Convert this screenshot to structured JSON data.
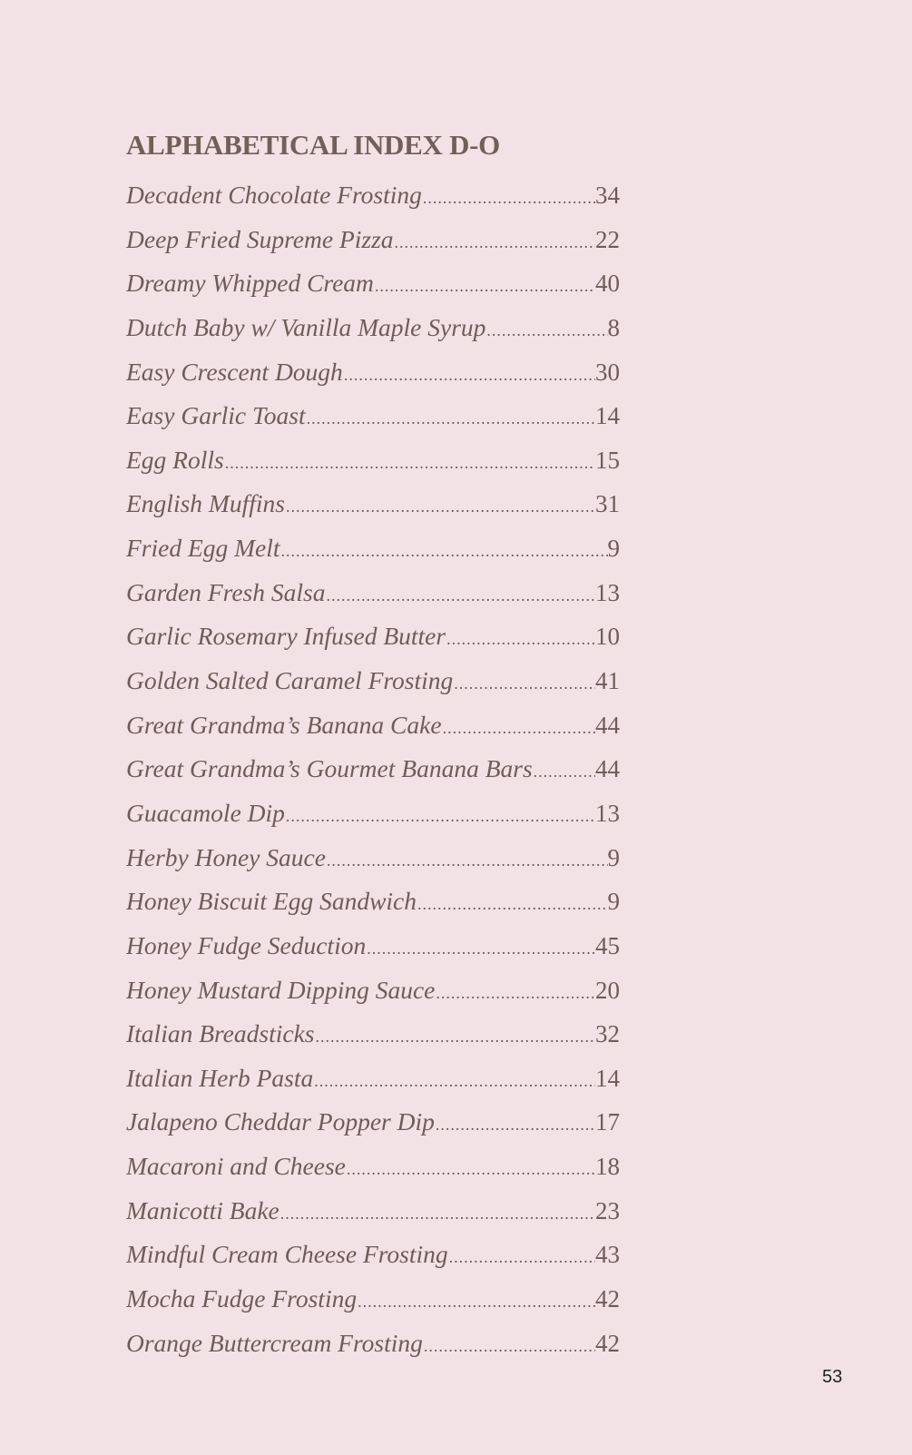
{
  "title": "ALPHABETICAL INDEX D-O",
  "entries": [
    {
      "name": "Decadent Chocolate Frosting",
      "page": "34"
    },
    {
      "name": "Deep Fried Supreme Pizza",
      "page": "22"
    },
    {
      "name": "Dreamy Whipped Cream",
      "page": "40"
    },
    {
      "name": "Dutch Baby w/ Vanilla Maple Syrup",
      "page": "8"
    },
    {
      "name": "Easy Crescent Dough",
      "page": "30"
    },
    {
      "name": "Easy Garlic Toast",
      "page": "14"
    },
    {
      "name": "Egg Rolls",
      "page": "15"
    },
    {
      "name": "English Muffins",
      "page": "31"
    },
    {
      "name": "Fried Egg Melt",
      "page": "9"
    },
    {
      "name": "Garden Fresh Salsa",
      "page": "13"
    },
    {
      "name": "Garlic Rosemary Infused Butter",
      "page": "10"
    },
    {
      "name": "Golden Salted Caramel Frosting",
      "page": "41"
    },
    {
      "name": "Great Grandma’s Banana Cake",
      "page": "44"
    },
    {
      "name": "Great Grandma’s Gourmet Banana Bars",
      "page": "44"
    },
    {
      "name": "Guacamole Dip",
      "page": "13"
    },
    {
      "name": "Herby Honey Sauce",
      "page": "9"
    },
    {
      "name": "Honey Biscuit Egg Sandwich",
      "page": "9"
    },
    {
      "name": "Honey Fudge Seduction",
      "page": "45"
    },
    {
      "name": "Honey Mustard Dipping Sauce",
      "page": "20"
    },
    {
      "name": "Italian Breadsticks",
      "page": "32"
    },
    {
      "name": "Italian Herb Pasta",
      "page": "14"
    },
    {
      "name": "Jalapeno Cheddar Popper Dip",
      "page": "17"
    },
    {
      "name": "Macaroni and Cheese",
      "page": "18"
    },
    {
      "name": "Manicotti Bake",
      "page": "23"
    },
    {
      "name": "Mindful Cream Cheese Frosting",
      "page": "43"
    },
    {
      "name": "Mocha Fudge Frosting",
      "page": "42"
    },
    {
      "name": "Orange Buttercream Frosting",
      "page": "42"
    }
  ],
  "page_number": "53",
  "colors": {
    "background": "#f2e2e5",
    "text": "#6f5c58"
  }
}
